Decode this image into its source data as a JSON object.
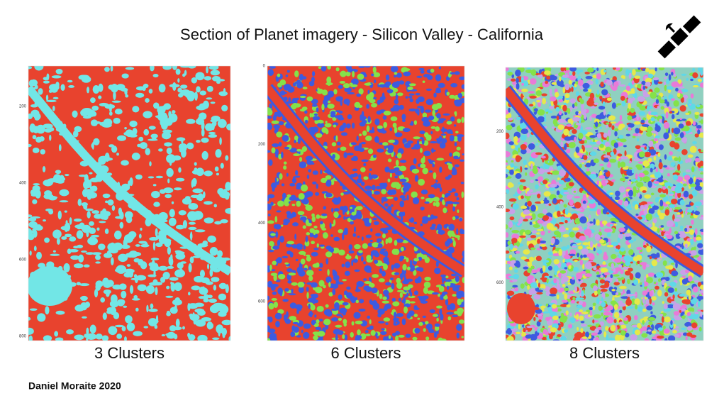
{
  "title": "Section of Planet imagery - Silicon Valley - California",
  "panels": [
    {
      "caption": "3 Clusters",
      "ticks": [
        200,
        400,
        600,
        800
      ]
    },
    {
      "caption": "6 Clusters",
      "ticks": [
        0,
        200,
        400,
        600
      ]
    },
    {
      "caption": "8 Clusters",
      "ticks": [
        200,
        400,
        600
      ]
    }
  ],
  "author": "Daniel Moraite 2020"
}
